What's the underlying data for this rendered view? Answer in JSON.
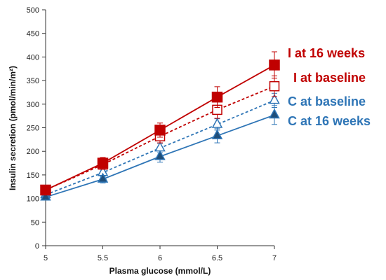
{
  "chart_data": {
    "type": "line",
    "title": "",
    "xlabel": "Plasma glucose (mmol/L)",
    "ylabel": "Insulin secretion (pmol/min/m²)",
    "x": [
      5,
      5.5,
      6,
      6.5,
      7
    ],
    "xlim": [
      5,
      7
    ],
    "ylim": [
      0,
      500
    ],
    "xticks": [
      "5",
      "5.5",
      "6",
      "6.5",
      "7"
    ],
    "yticks": [
      "0",
      "50",
      "100",
      "150",
      "200",
      "250",
      "300",
      "350",
      "400",
      "450",
      "500"
    ],
    "grid": false,
    "legend_placement": "right",
    "series": [
      {
        "name": "I at 16 weeks",
        "values": [
          118,
          175,
          245,
          315,
          383
        ],
        "errors": [
          5,
          12,
          15,
          22,
          28
        ],
        "color": "#c00000",
        "marker": "square",
        "filled": true,
        "dashed": false
      },
      {
        "name": "I at baseline",
        "values": [
          118,
          172,
          232,
          288,
          338
        ],
        "errors": [
          5,
          10,
          14,
          18,
          22
        ],
        "color": "#c00000",
        "marker": "square",
        "filled": false,
        "dashed": true
      },
      {
        "name": "C at baseline",
        "values": [
          108,
          155,
          207,
          257,
          308
        ],
        "errors": [
          4,
          8,
          10,
          12,
          15
        ],
        "color": "#2e75b6",
        "marker": "triangle",
        "filled": false,
        "dashed": true
      },
      {
        "name": "C at 16 weeks",
        "values": [
          103,
          141,
          189,
          233,
          277
        ],
        "errors": [
          4,
          8,
          12,
          15,
          20
        ],
        "color": "#2e75b6",
        "marker": "triangle",
        "filled": true,
        "dashed": false
      }
    ]
  }
}
